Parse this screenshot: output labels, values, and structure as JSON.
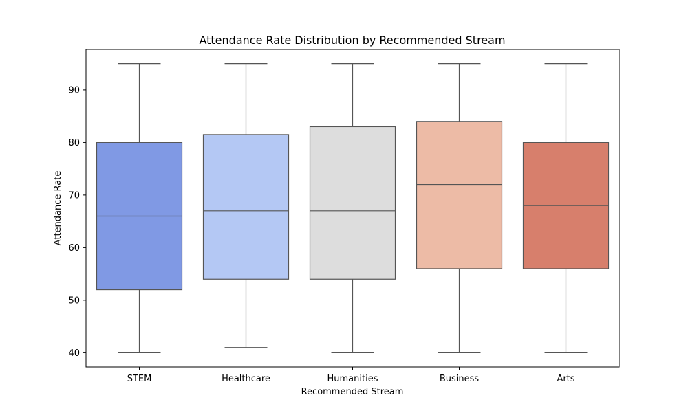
{
  "chart_data": {
    "type": "box",
    "title": "Attendance Rate Distribution by Recommended Stream",
    "xlabel": "Recommended Stream",
    "ylabel": "Attendance Rate",
    "ylim": [
      37.3,
      97.7
    ],
    "yticks": [
      40,
      50,
      60,
      70,
      80,
      90
    ],
    "grid": false,
    "categories": [
      "STEM",
      "Healthcare",
      "Humanities",
      "Business",
      "Arts"
    ],
    "boxes": [
      {
        "category": "STEM",
        "min": 40,
        "q1": 52,
        "median": 66,
        "q3": 80,
        "max": 95,
        "color": "#8099e4"
      },
      {
        "category": "Healthcare",
        "min": 41,
        "q1": 54,
        "median": 67,
        "q3": 81.5,
        "max": 95,
        "color": "#b4c8f4"
      },
      {
        "category": "Humanities",
        "min": 40,
        "q1": 54,
        "median": 67,
        "q3": 83,
        "max": 95,
        "color": "#dddddd"
      },
      {
        "category": "Business",
        "min": 40,
        "q1": 56,
        "median": 72,
        "q3": 84,
        "max": 95,
        "color": "#edbba6"
      },
      {
        "category": "Arts",
        "min": 40,
        "q1": 56,
        "median": 68,
        "q3": 80,
        "max": 95,
        "color": "#d77f6c"
      }
    ],
    "line_color": "#555555"
  }
}
